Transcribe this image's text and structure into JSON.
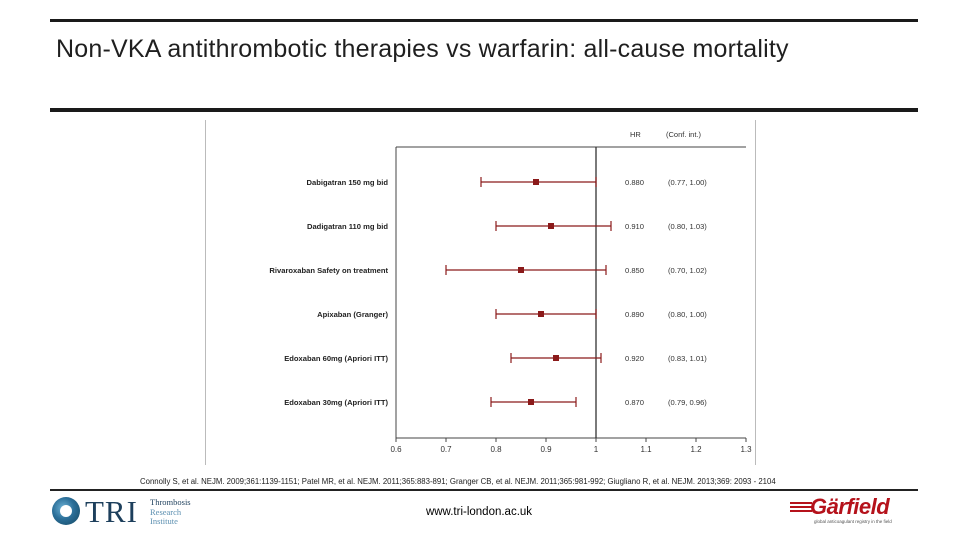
{
  "slide": {
    "title": "Non-VKA antithrombotic therapies vs warfarin: all-cause mortality",
    "citation": "Connolly S, et al. NEJM. 2009;361:1139-1151; Patel MR, et al. NEJM. 2011;365:883-891; Granger CB, et al. NEJM. 2011;365:981-992; Giugliano R, et al. NEJM. 2013;369: 2093 - 2104",
    "footer_url": "www.tri-london.ac.uk",
    "logos": {
      "tri": {
        "mark": "TRI",
        "line1": "Thrombosis",
        "line2": "Research",
        "line3": "Institute"
      },
      "garfield": {
        "word": "Gärfield",
        "tagline": "global anticoagulant registry in the field"
      }
    }
  },
  "chart_data": {
    "type": "forest",
    "column_headers": {
      "hr": "HR",
      "ci": "(Conf. int.)"
    },
    "reference_line": 1,
    "x_ticks": [
      0.6,
      0.7,
      0.8,
      0.9,
      1,
      1.1,
      1.2,
      1.3
    ],
    "x_tick_labels": [
      "0.6",
      "0.7",
      "0.8",
      "0.9",
      "1",
      "1.1",
      "1.2",
      "1.3"
    ],
    "xlim": [
      0.6,
      1.3
    ],
    "marker_color": "#8b1a1a",
    "rows": [
      {
        "label": "Dabigatran 150 mg bid",
        "hr": 0.88,
        "lo": 0.77,
        "hi": 1.0,
        "hr_text": "0.880",
        "ci_text": "(0.77, 1.00)"
      },
      {
        "label": "Dadigatran 110 mg bid",
        "hr": 0.91,
        "lo": 0.8,
        "hi": 1.03,
        "hr_text": "0.910",
        "ci_text": "(0.80, 1.03)"
      },
      {
        "label": "Rivaroxaban Safety on treatment",
        "hr": 0.85,
        "lo": 0.7,
        "hi": 1.02,
        "hr_text": "0.850",
        "ci_text": "(0.70, 1.02)"
      },
      {
        "label": "Apixaban (Granger)",
        "hr": 0.89,
        "lo": 0.8,
        "hi": 1.0,
        "hr_text": "0.890",
        "ci_text": "(0.80, 1.00)"
      },
      {
        "label": "Edoxaban 60mg (Apriori ITT)",
        "hr": 0.92,
        "lo": 0.83,
        "hi": 1.01,
        "hr_text": "0.920",
        "ci_text": "(0.83, 1.01)"
      },
      {
        "label": "Edoxaban 30mg (Apriori ITT)",
        "hr": 0.87,
        "lo": 0.79,
        "hi": 0.96,
        "hr_text": "0.870",
        "ci_text": "(0.79, 0.96)"
      }
    ]
  }
}
